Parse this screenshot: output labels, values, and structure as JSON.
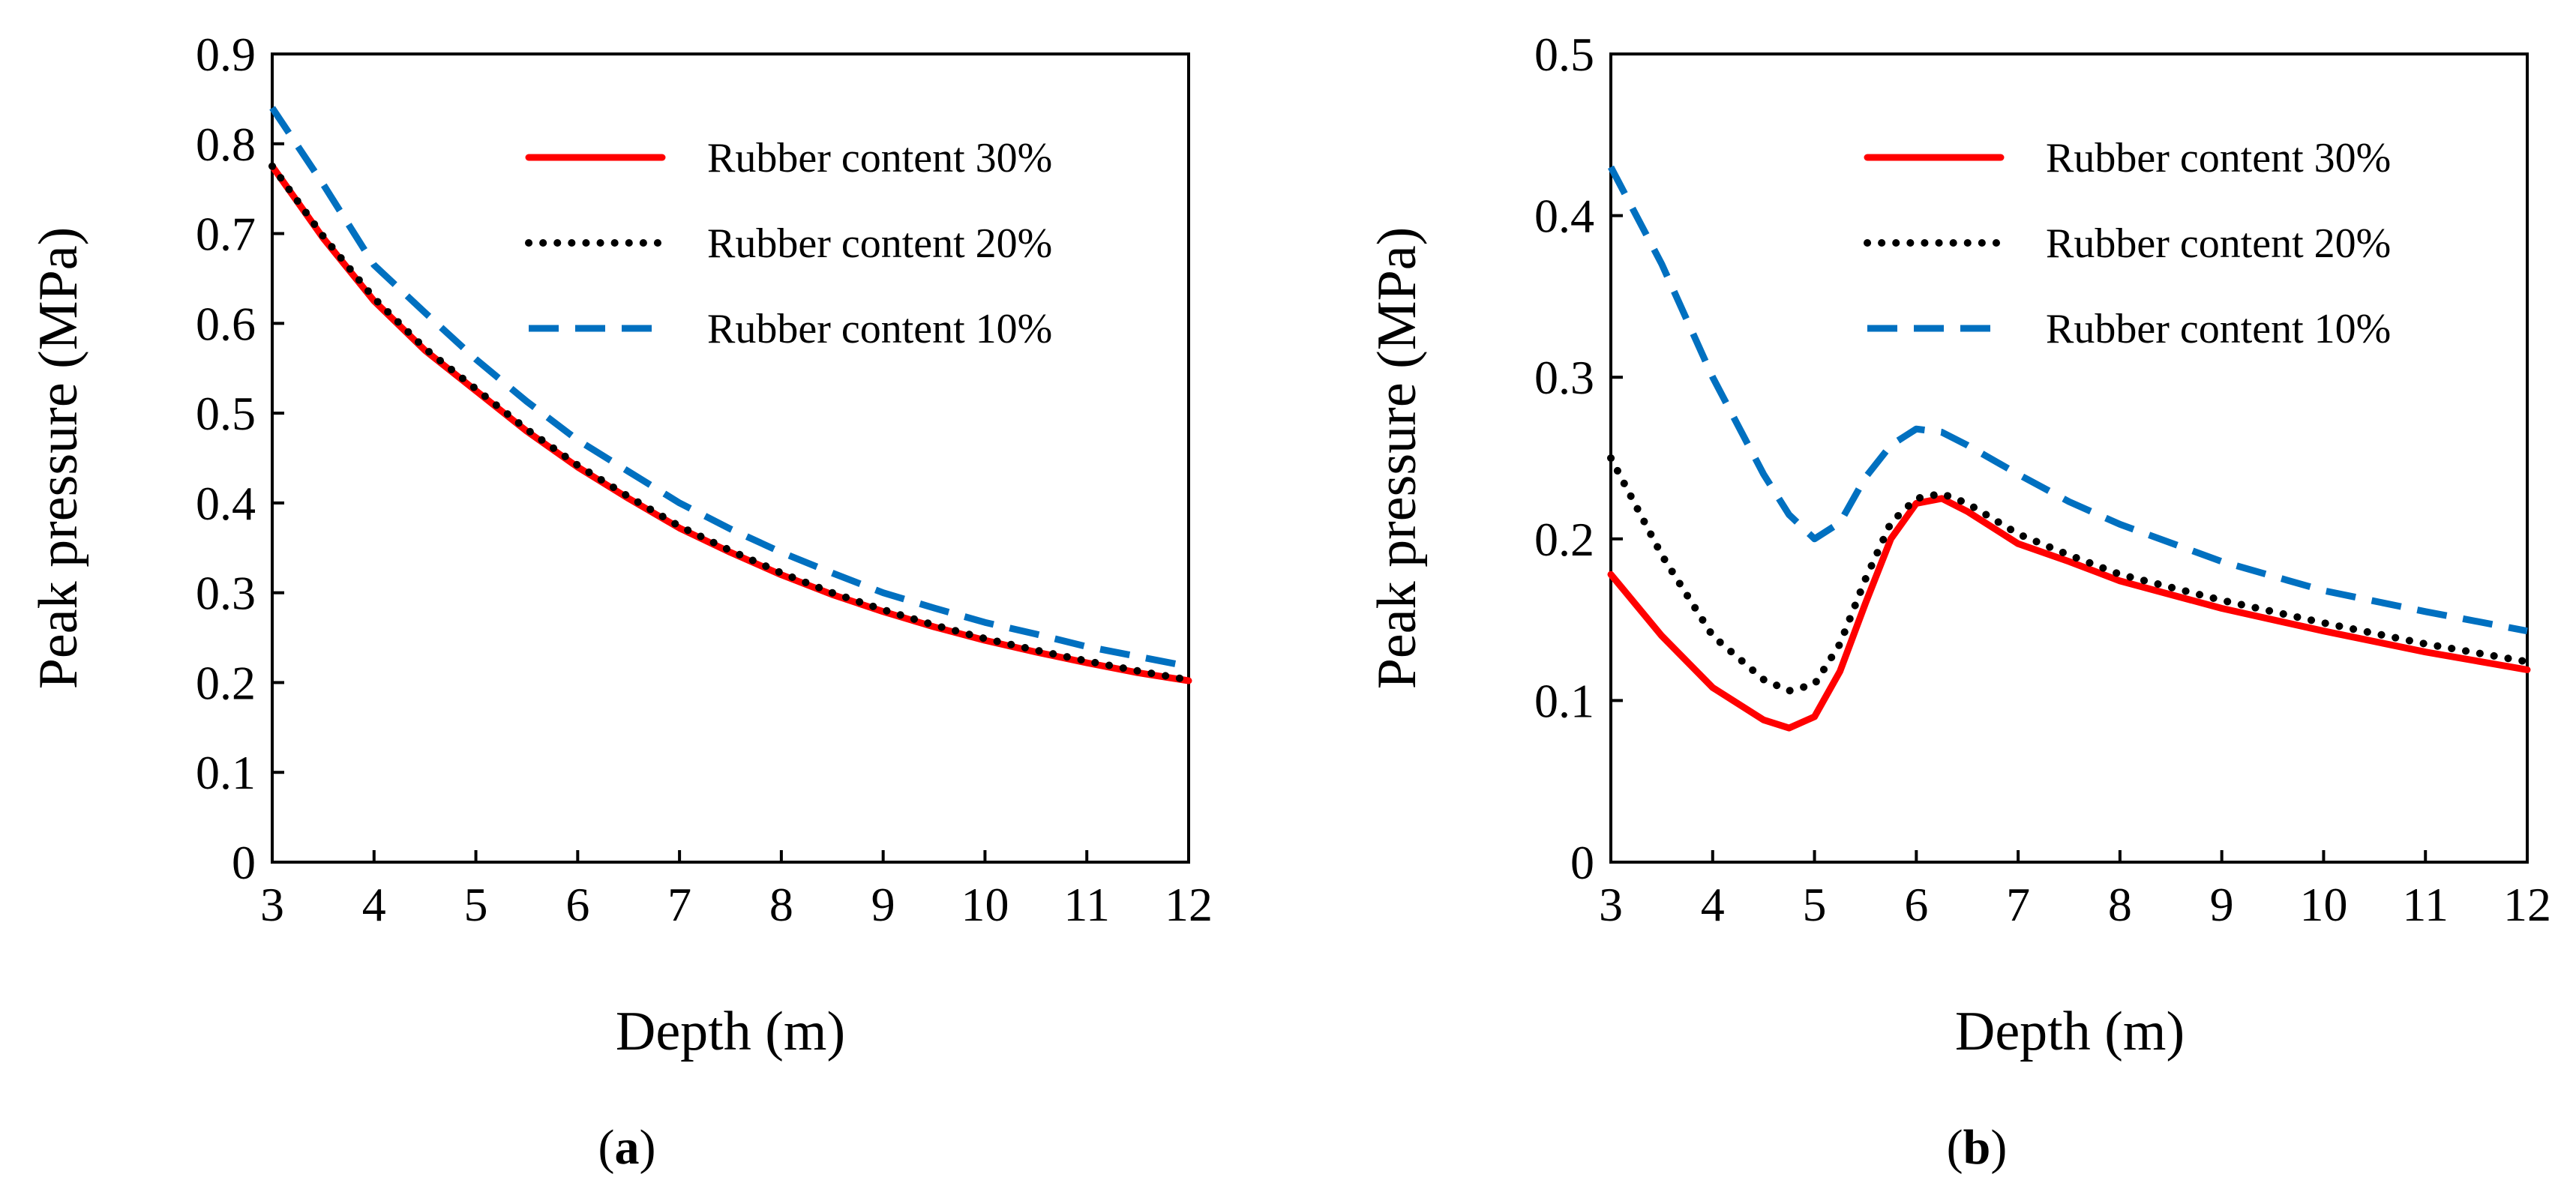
{
  "chart_data": [
    {
      "type": "line",
      "panel_label": "a",
      "xlabel": "Depth (m)",
      "ylabel": "Peak pressure (MPa)",
      "xlim": [
        3,
        12
      ],
      "ylim": [
        0,
        0.9
      ],
      "xticks": [
        3,
        4,
        5,
        6,
        7,
        8,
        9,
        10,
        11,
        12
      ],
      "yticks": [
        0,
        0.1,
        0.2,
        0.3,
        0.4,
        0.5,
        0.6,
        0.7,
        0.8,
        0.9
      ],
      "ytick_labels": [
        "0",
        "0.1",
        "0.2",
        "0.3",
        "0.4",
        "0.5",
        "0.6",
        "0.7",
        "0.8",
        "0.9"
      ],
      "legend_position": "top-right",
      "series": [
        {
          "name": "Rubber content 30%",
          "style": "solid",
          "color": "#ff0000",
          "x": [
            3,
            3.5,
            4,
            4.5,
            5,
            5.5,
            6,
            6.5,
            7,
            7.5,
            8,
            8.5,
            9,
            9.5,
            10,
            10.5,
            11,
            11.5,
            12
          ],
          "y": [
            0.775,
            0.695,
            0.625,
            0.57,
            0.525,
            0.48,
            0.44,
            0.405,
            0.372,
            0.345,
            0.32,
            0.298,
            0.279,
            0.262,
            0.247,
            0.234,
            0.222,
            0.211,
            0.202
          ]
        },
        {
          "name": "Rubber content 20%",
          "style": "dotted",
          "color": "#000000",
          "x": [
            3,
            3.5,
            4,
            4.5,
            5,
            5.5,
            6,
            6.5,
            7,
            7.5,
            8,
            8.5,
            9,
            9.5,
            10,
            10.5,
            11,
            11.5,
            12
          ],
          "y": [
            0.775,
            0.697,
            0.628,
            0.572,
            0.527,
            0.482,
            0.442,
            0.407,
            0.374,
            0.347,
            0.322,
            0.3,
            0.281,
            0.264,
            0.249,
            0.236,
            0.224,
            0.213,
            0.203
          ]
        },
        {
          "name": "Rubber content 10%",
          "style": "dashed",
          "color": "#0070c0",
          "x": [
            3,
            3.5,
            4,
            4.5,
            5,
            5.5,
            6,
            6.5,
            7,
            7.5,
            8,
            8.5,
            9,
            9.5,
            10,
            10.5,
            11,
            11.5,
            12
          ],
          "y": [
            0.84,
            0.755,
            0.665,
            0.612,
            0.56,
            0.513,
            0.47,
            0.435,
            0.4,
            0.371,
            0.345,
            0.322,
            0.3,
            0.283,
            0.267,
            0.254,
            0.24,
            0.229,
            0.218
          ]
        }
      ]
    },
    {
      "type": "line",
      "panel_label": "b",
      "xlabel": "Depth (m)",
      "ylabel": "Peak pressure (MPa)",
      "xlim": [
        3,
        12
      ],
      "ylim": [
        0,
        0.5
      ],
      "xticks": [
        3,
        4,
        5,
        6,
        7,
        8,
        9,
        10,
        11,
        12
      ],
      "yticks": [
        0,
        0.1,
        0.2,
        0.3,
        0.4,
        0.5
      ],
      "ytick_labels": [
        "0",
        "0.1",
        "0.2",
        "0.3",
        "0.4",
        "0.5"
      ],
      "legend_position": "top-right",
      "series": [
        {
          "name": "Rubber content 30%",
          "style": "solid",
          "color": "#ff0000",
          "x": [
            3,
            3.5,
            4,
            4.5,
            4.75,
            5,
            5.25,
            5.5,
            5.75,
            6,
            6.25,
            6.5,
            7,
            7.5,
            8,
            9,
            10,
            11,
            12
          ],
          "y": [
            0.178,
            0.14,
            0.108,
            0.088,
            0.083,
            0.09,
            0.118,
            0.16,
            0.2,
            0.222,
            0.225,
            0.217,
            0.197,
            0.186,
            0.174,
            0.157,
            0.143,
            0.13,
            0.119
          ]
        },
        {
          "name": "Rubber content 20%",
          "style": "dotted",
          "color": "#000000",
          "x": [
            3,
            3.5,
            4,
            4.5,
            4.75,
            5,
            5.25,
            5.5,
            5.75,
            6,
            6.25,
            6.5,
            7,
            7.5,
            8,
            9,
            10,
            11,
            12
          ],
          "y": [
            0.25,
            0.19,
            0.14,
            0.113,
            0.106,
            0.11,
            0.135,
            0.175,
            0.21,
            0.225,
            0.228,
            0.222,
            0.203,
            0.19,
            0.178,
            0.162,
            0.148,
            0.135,
            0.124
          ]
        },
        {
          "name": "Rubber content 10%",
          "style": "dashed",
          "color": "#0070c0",
          "x": [
            3,
            3.5,
            4,
            4.5,
            4.75,
            5,
            5.25,
            5.5,
            5.75,
            6,
            6.25,
            6.5,
            7,
            7.5,
            8,
            9,
            10,
            11,
            12
          ],
          "y": [
            0.43,
            0.37,
            0.3,
            0.24,
            0.215,
            0.2,
            0.21,
            0.238,
            0.258,
            0.268,
            0.266,
            0.258,
            0.24,
            0.223,
            0.209,
            0.186,
            0.168,
            0.155,
            0.143
          ]
        }
      ]
    }
  ]
}
